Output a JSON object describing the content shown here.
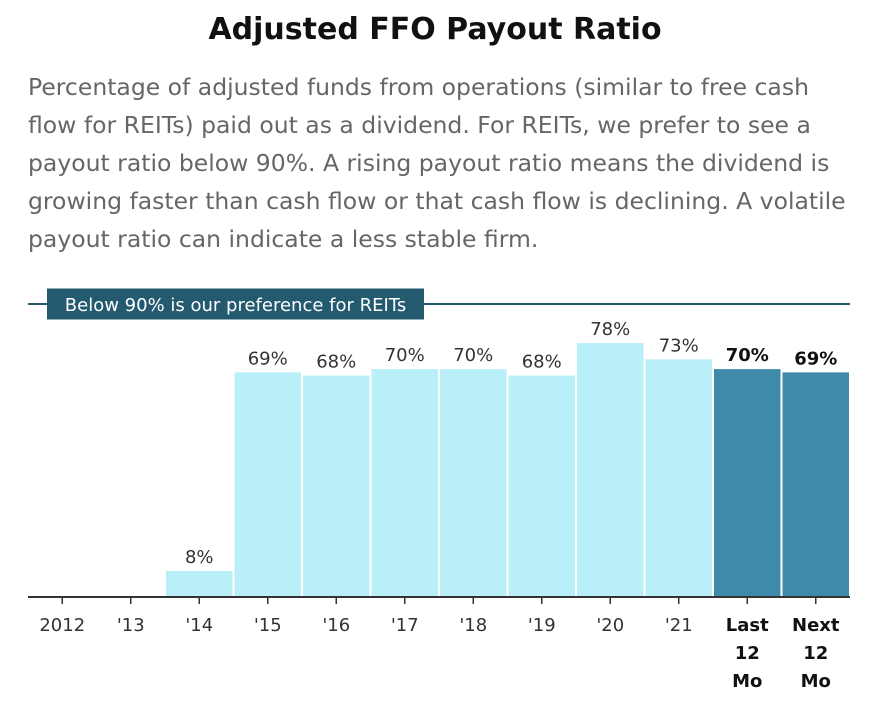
{
  "header": {
    "title": "Adjusted FFO Payout Ratio",
    "description": "Percentage of adjusted funds from operations (similar to free cash flow for REITs) paid out as a dividend. For REITs, we prefer to see a payout ratio below 90%. A rising payout ratio means the dividend is growing faster than cash flow or that cash flow is declining. A volatile payout ratio can indicate a less stable firm."
  },
  "chart_data": {
    "type": "bar",
    "title": "Adjusted FFO Payout Ratio",
    "categories": [
      "2012",
      "'13",
      "'14",
      "'15",
      "'16",
      "'17",
      "'18",
      "'19",
      "'20",
      "'21",
      "Last 12 Mo",
      "Next 12 Mo"
    ],
    "category_lines": [
      [
        "2012"
      ],
      [
        "'13"
      ],
      [
        "'14"
      ],
      [
        "'15"
      ],
      [
        "'16"
      ],
      [
        "'17"
      ],
      [
        "'18"
      ],
      [
        "'19"
      ],
      [
        "'20"
      ],
      [
        "'21"
      ],
      [
        "Last",
        "12",
        "Mo"
      ],
      [
        "Next",
        "12",
        "Mo"
      ]
    ],
    "values": [
      null,
      null,
      8,
      69,
      68,
      70,
      70,
      68,
      78,
      73,
      70,
      69
    ],
    "labels": [
      "",
      "",
      "8%",
      "69%",
      "68%",
      "70%",
      "70%",
      "68%",
      "78%",
      "73%",
      "70%",
      "69%"
    ],
    "highlighted": [
      false,
      false,
      false,
      false,
      false,
      false,
      false,
      false,
      false,
      false,
      true,
      true
    ],
    "reference_line": {
      "value": 90,
      "label": "Below 90% is our preference for REITs"
    },
    "ylim": [
      0,
      90
    ],
    "xlabel": "",
    "ylabel": "",
    "grid": false,
    "colors": {
      "historical": "#b8eff8",
      "highlight": "#3f8aab",
      "reference": "#245a70",
      "axis": "#333333",
      "label": "#333333"
    }
  }
}
